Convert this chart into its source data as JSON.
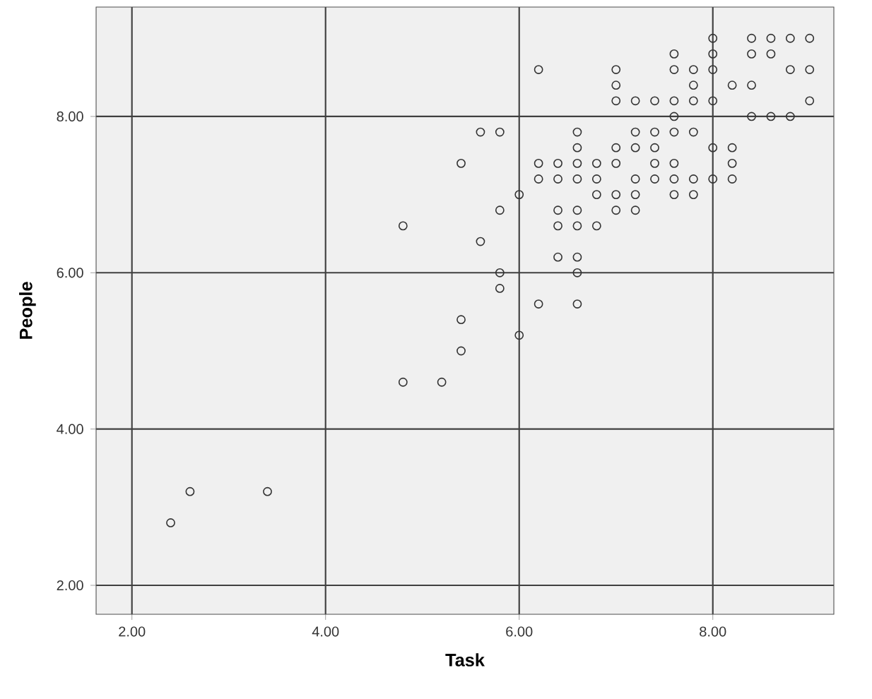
{
  "chart_data": {
    "type": "scatter",
    "xlabel": "Task",
    "ylabel": "People",
    "xlim": [
      1.63,
      9.25
    ],
    "ylim": [
      1.63,
      9.4
    ],
    "xticks": [
      {
        "value": 2,
        "label": "2.00"
      },
      {
        "value": 4,
        "label": "4.00"
      },
      {
        "value": 6,
        "label": "6.00"
      },
      {
        "value": 8,
        "label": "8.00"
      }
    ],
    "yticks": [
      {
        "value": 2,
        "label": "2.00"
      },
      {
        "value": 4,
        "label": "4.00"
      },
      {
        "value": 6,
        "label": "6.00"
      },
      {
        "value": 8,
        "label": "8.00"
      }
    ],
    "grid": true,
    "marker": "circle",
    "series": [
      {
        "color": "#333333",
        "x": [
          2.4,
          2.6,
          3.4,
          4.8,
          5.2,
          5.4,
          5.4,
          4.8,
          5.6,
          5.4,
          5.6,
          5.8,
          5.8,
          5.8,
          5.8,
          6.0,
          6.6,
          6.2,
          6.6,
          6.0,
          6.4,
          6.6,
          6.4,
          6.6,
          6.8,
          6.4,
          6.6,
          7.0,
          7.2,
          6.8,
          7.0,
          7.2,
          7.6,
          7.8,
          6.2,
          6.4,
          6.6,
          6.8,
          7.2,
          7.4,
          7.6,
          7.8,
          8.0,
          8.2,
          6.2,
          6.4,
          6.6,
          6.8,
          7.0,
          7.4,
          7.6,
          8.2,
          6.6,
          7.0,
          7.2,
          7.4,
          8.0,
          8.2,
          6.6,
          7.2,
          7.4,
          7.6,
          7.8,
          7.6,
          8.4,
          8.6,
          8.8,
          7.0,
          7.2,
          7.4,
          7.6,
          7.8,
          8.0,
          9.0,
          7.0,
          7.8,
          8.2,
          8.4,
          6.2,
          7.0,
          7.6,
          7.8,
          8.0,
          8.8,
          9.0,
          7.6,
          8.0,
          8.4,
          8.6,
          8.0,
          8.4,
          8.6,
          8.8,
          9.0
        ],
        "values": [
          2.8,
          3.2,
          3.2,
          4.6,
          4.6,
          5.0,
          5.4,
          6.6,
          6.4,
          7.4,
          7.8,
          7.8,
          6.8,
          6.0,
          5.8,
          5.2,
          6.0,
          5.6,
          5.6,
          7.0,
          6.2,
          6.2,
          6.6,
          6.6,
          6.6,
          6.8,
          6.8,
          6.8,
          6.8,
          7.0,
          7.0,
          7.0,
          7.0,
          7.0,
          7.2,
          7.2,
          7.2,
          7.2,
          7.2,
          7.2,
          7.2,
          7.2,
          7.2,
          7.2,
          7.4,
          7.4,
          7.4,
          7.4,
          7.4,
          7.4,
          7.4,
          7.4,
          7.6,
          7.6,
          7.6,
          7.6,
          7.6,
          7.6,
          7.8,
          7.8,
          7.8,
          7.8,
          7.8,
          8.0,
          8.0,
          8.0,
          8.0,
          8.2,
          8.2,
          8.2,
          8.2,
          8.2,
          8.2,
          8.2,
          8.4,
          8.4,
          8.4,
          8.4,
          8.6,
          8.6,
          8.6,
          8.6,
          8.6,
          8.6,
          8.6,
          8.8,
          8.8,
          8.8,
          8.8,
          9.0,
          9.0,
          9.0,
          9.0,
          9.0
        ]
      }
    ]
  }
}
